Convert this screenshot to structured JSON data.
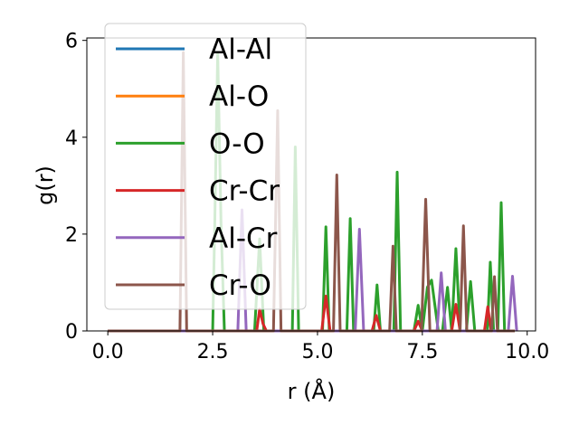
{
  "chart_data": {
    "type": "line",
    "xlabel": "r (Å)",
    "ylabel": "g(r)",
    "xlim": [
      -0.5,
      10.2
    ],
    "ylim": [
      0,
      6.05
    ],
    "xticks": [
      0,
      2.5,
      5,
      7.5,
      10
    ],
    "xtick_labels": [
      "0.0",
      "2.5",
      "5.0",
      "7.5",
      "10.0"
    ],
    "yticks": [
      0,
      2,
      4,
      6
    ],
    "ytick_labels": [
      "0",
      "2",
      "4",
      "6"
    ],
    "grid": false,
    "legend_position": "upper-left",
    "series": [
      {
        "name": "Al-Al",
        "color": "#1f77b4",
        "x": [
          0,
          9.7
        ],
        "y": [
          0,
          0
        ]
      },
      {
        "name": "Al-O",
        "color": "#ff7f0e",
        "x": [
          0,
          9.7
        ],
        "y": [
          0,
          0
        ]
      },
      {
        "name": "O-O",
        "color": "#2ca02c",
        "x": [
          0,
          2.5,
          2.55,
          2.62,
          2.7,
          2.78,
          3.5,
          3.62,
          3.72,
          3.82,
          4.4,
          4.47,
          4.55,
          4.62,
          5.12,
          5.2,
          5.28,
          5.36,
          5.7,
          5.78,
          5.86,
          5.94,
          6.34,
          6.42,
          6.5,
          6.58,
          6.82,
          6.9,
          6.98,
          7.06,
          7.3,
          7.4,
          7.5,
          7.62,
          7.72,
          7.88,
          7.98,
          8.1,
          8.2,
          8.3,
          8.4,
          8.55,
          8.65,
          8.75,
          8.85,
          9.05,
          9.12,
          9.2,
          9.3,
          9.38,
          9.46,
          9.56,
          9.7
        ],
        "y": [
          0,
          0,
          2.2,
          5.75,
          2.2,
          0,
          0,
          1.9,
          0,
          0,
          0,
          3.8,
          0,
          0,
          0,
          2.15,
          0,
          0,
          0,
          2.32,
          0,
          0,
          0,
          0.95,
          0,
          0,
          0,
          3.28,
          0,
          0,
          0,
          0.53,
          0,
          0.9,
          1.05,
          0,
          0,
          0.9,
          0,
          1.7,
          0,
          0,
          1.02,
          0,
          0,
          0,
          1.42,
          0,
          0,
          2.65,
          0,
          0,
          0
        ]
      },
      {
        "name": "Cr-Cr",
        "color": "#d62728",
        "x": [
          0,
          3.55,
          3.62,
          3.7,
          3.78,
          5.1,
          5.2,
          5.3,
          6.3,
          6.4,
          6.5,
          7.3,
          7.4,
          7.5,
          8.2,
          8.3,
          8.4,
          8.98,
          9.06,
          9.14,
          9.7
        ],
        "y": [
          0,
          0,
          0.45,
          0.15,
          0,
          0,
          0.72,
          0,
          0,
          0.32,
          0,
          0,
          0.2,
          0,
          0,
          0.55,
          0,
          0,
          0.5,
          0,
          0
        ]
      },
      {
        "name": "Al-Cr",
        "color": "#9467bd",
        "x": [
          0,
          3.1,
          3.2,
          3.3,
          5.9,
          6.0,
          6.1,
          7.85,
          7.95,
          8.05,
          9.55,
          9.65,
          9.75
        ],
        "y": [
          0,
          0,
          2.5,
          0,
          0,
          2.1,
          0,
          0,
          1.2,
          0,
          0,
          1.13,
          0
        ]
      },
      {
        "name": "Cr-O",
        "color": "#8c564b",
        "x": [
          0,
          1.72,
          1.8,
          1.88,
          3.95,
          4.05,
          4.13,
          5.38,
          5.46,
          5.54,
          6.72,
          6.8,
          6.88,
          7.48,
          7.58,
          7.68,
          8.4,
          8.48,
          8.56,
          9.15,
          9.22,
          9.29,
          9.7
        ],
        "y": [
          0,
          0,
          5.75,
          0,
          0,
          4.55,
          0,
          0,
          3.22,
          0,
          0,
          1.75,
          0,
          0,
          2.72,
          0,
          0,
          2.17,
          0,
          0,
          1.12,
          0,
          0
        ]
      }
    ]
  }
}
